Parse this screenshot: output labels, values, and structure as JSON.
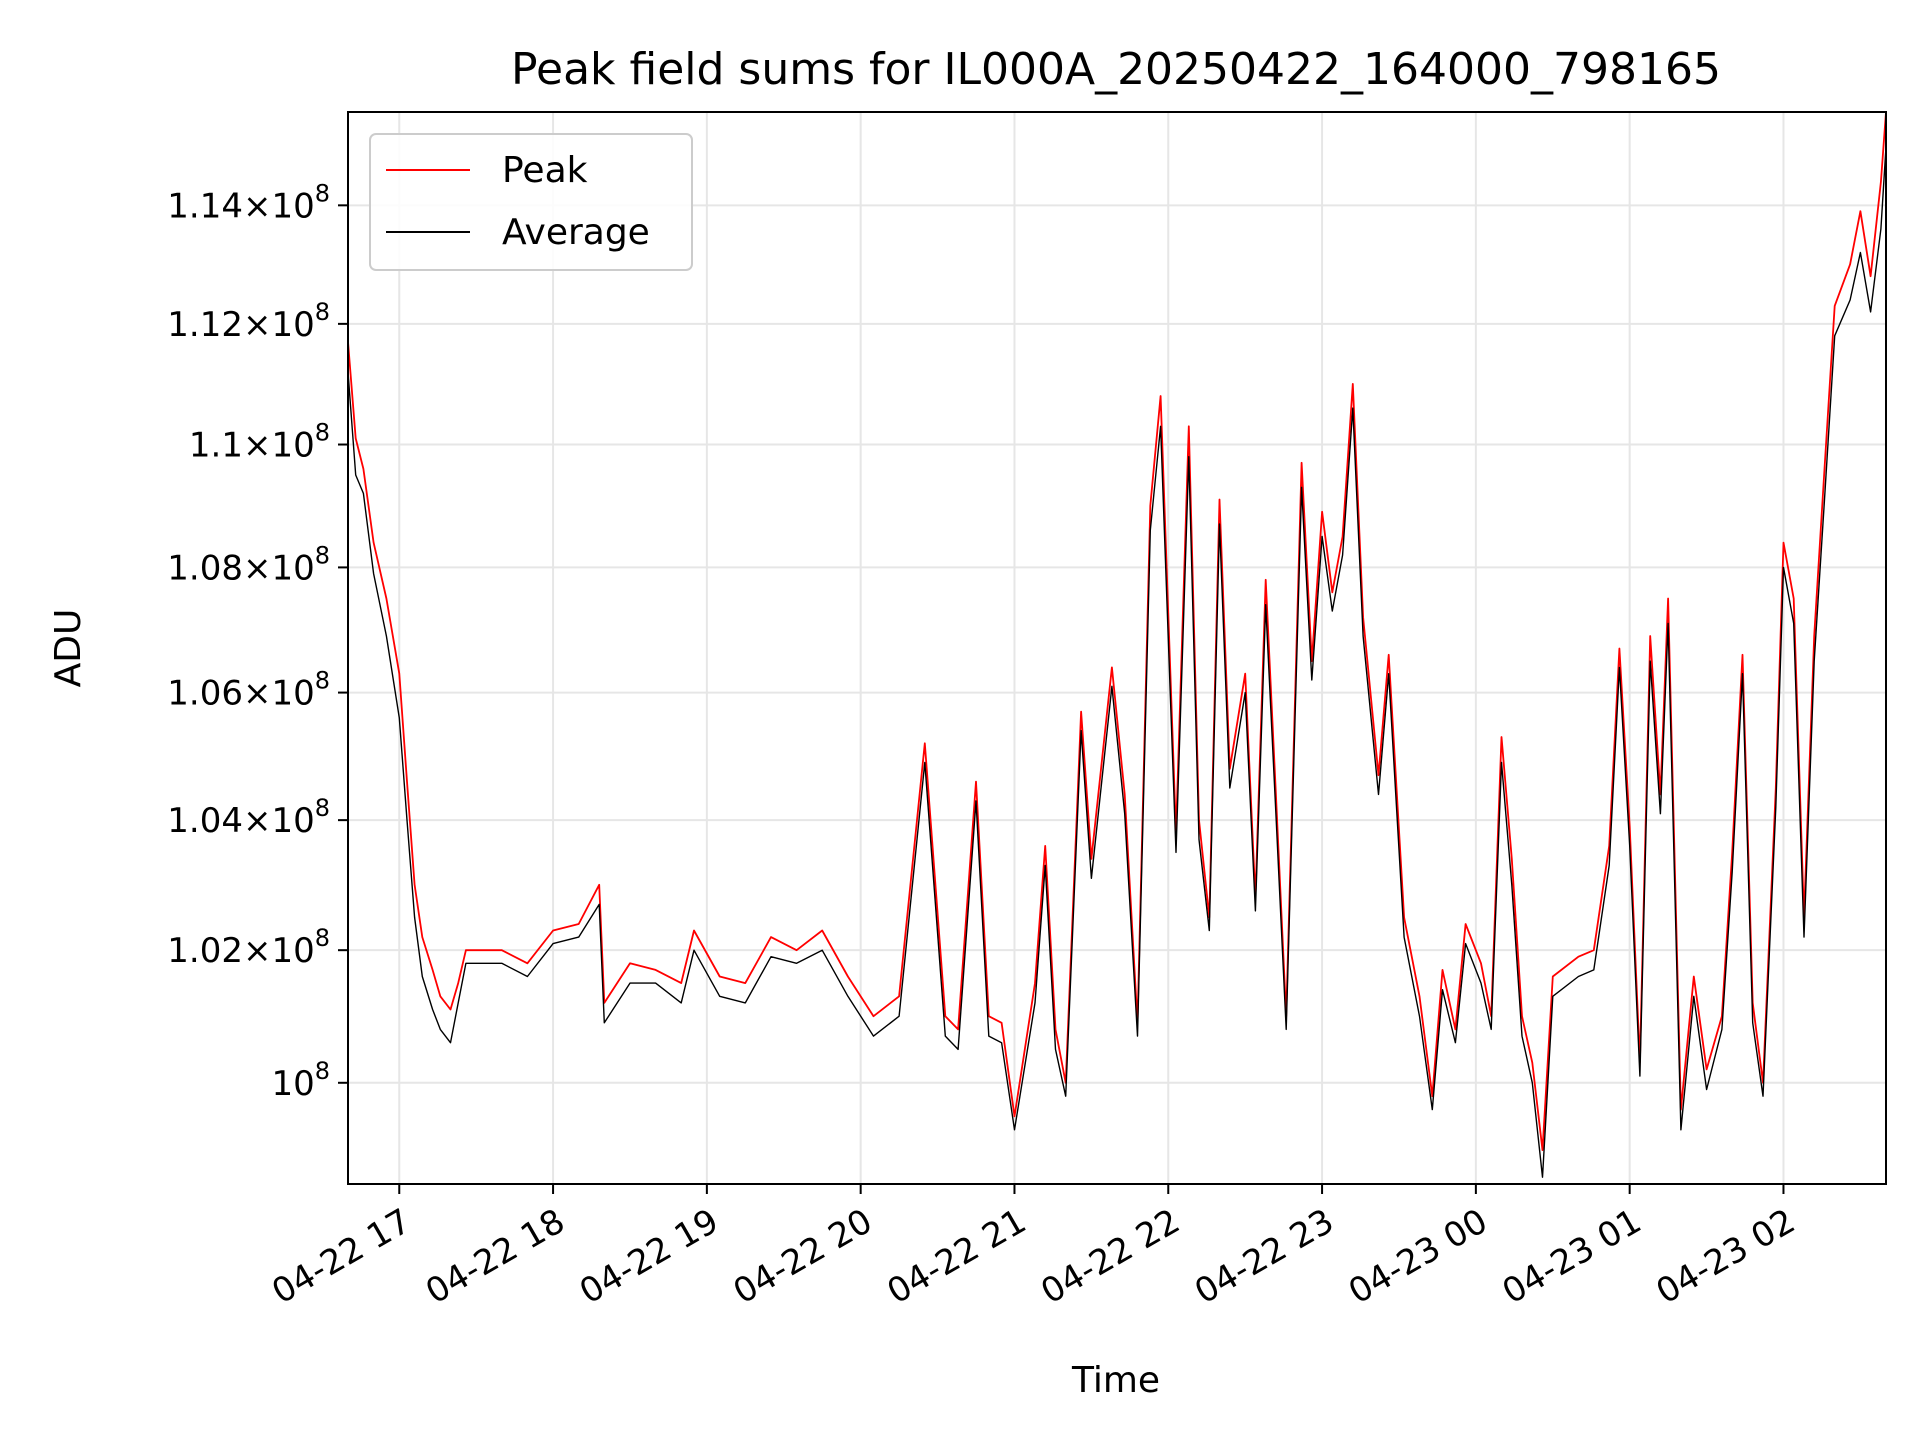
{
  "chart_data": {
    "type": "line",
    "title": "Peak field sums for IL000A_20250422_164000_798165",
    "xlabel": "Time",
    "ylabel": "ADU",
    "yscale": "log",
    "x_tick_labels": [
      "04-22 17",
      "04-22 18",
      "04-22 19",
      "04-22 20",
      "04-22 21",
      "04-22 22",
      "04-22 23",
      "04-23 00",
      "04-23 01",
      "04-23 02"
    ],
    "x_ticks": [
      "2025-04-22 17:00",
      "2025-04-22 18:00",
      "2025-04-22 19:00",
      "2025-04-22 20:00",
      "2025-04-22 21:00",
      "2025-04-22 22:00",
      "2025-04-22 23:00",
      "2025-04-23 00:00",
      "2025-04-23 01:00",
      "2025-04-23 02:00"
    ],
    "xlim": [
      "2025-04-22 16:40",
      "2025-04-23 02:40"
    ],
    "y_ticks": [
      {
        "value": 100000000,
        "mantissa": "",
        "exponent": "8"
      },
      {
        "value": 102000000,
        "mantissa": "1.02",
        "exponent": "8"
      },
      {
        "value": 104000000,
        "mantissa": "1.04",
        "exponent": "8"
      },
      {
        "value": 106000000,
        "mantissa": "1.06",
        "exponent": "8"
      },
      {
        "value": 108000000,
        "mantissa": "1.08",
        "exponent": "8"
      },
      {
        "value": 110000000,
        "mantissa": "1.1",
        "exponent": "8"
      },
      {
        "value": 112000000,
        "mantissa": "1.12",
        "exponent": "8"
      },
      {
        "value": 114000000,
        "mantissa": "1.14",
        "exponent": "8"
      }
    ],
    "ylim": [
      98500000,
      115600000
    ],
    "grid": true,
    "legend_position": "upper-left",
    "series": [
      {
        "name": "Peak",
        "color": "#ff0000",
        "points": [
          [
            "2025-04-22 16:40",
            111.7
          ],
          [
            "2025-04-22 16:43",
            110.1
          ],
          [
            "2025-04-22 16:46",
            109.6
          ],
          [
            "2025-04-22 16:50",
            108.4
          ],
          [
            "2025-04-22 16:55",
            107.5
          ],
          [
            "2025-04-22 17:00",
            106.3
          ],
          [
            "2025-04-22 17:03",
            104.6
          ],
          [
            "2025-04-22 17:06",
            103.0
          ],
          [
            "2025-04-22 17:09",
            102.2
          ],
          [
            "2025-04-22 17:13",
            101.7
          ],
          [
            "2025-04-22 17:16",
            101.3
          ],
          [
            "2025-04-22 17:20",
            101.1
          ],
          [
            "2025-04-22 17:23",
            101.5
          ],
          [
            "2025-04-22 17:26",
            102.0
          ],
          [
            "2025-04-22 17:30",
            102.0
          ],
          [
            "2025-04-22 17:40",
            102.0
          ],
          [
            "2025-04-22 17:50",
            101.8
          ],
          [
            "2025-04-22 18:00",
            102.3
          ],
          [
            "2025-04-22 18:10",
            102.4
          ],
          [
            "2025-04-22 18:18",
            103.0
          ],
          [
            "2025-04-22 18:20",
            101.2
          ],
          [
            "2025-04-22 18:30",
            101.8
          ],
          [
            "2025-04-22 18:40",
            101.7
          ],
          [
            "2025-04-22 18:50",
            101.5
          ],
          [
            "2025-04-22 18:55",
            102.3
          ],
          [
            "2025-04-22 19:05",
            101.6
          ],
          [
            "2025-04-22 19:15",
            101.5
          ],
          [
            "2025-04-22 19:25",
            102.2
          ],
          [
            "2025-04-22 19:35",
            102.0
          ],
          [
            "2025-04-22 19:45",
            102.3
          ],
          [
            "2025-04-22 19:55",
            101.6
          ],
          [
            "2025-04-22 20:05",
            101.0
          ],
          [
            "2025-04-22 20:15",
            101.3
          ],
          [
            "2025-04-22 20:25",
            105.2
          ],
          [
            "2025-04-22 20:33",
            101.0
          ],
          [
            "2025-04-22 20:38",
            100.8
          ],
          [
            "2025-04-22 20:45",
            104.6
          ],
          [
            "2025-04-22 20:50",
            101.0
          ],
          [
            "2025-04-22 20:55",
            100.9
          ],
          [
            "2025-04-22 21:00",
            99.5
          ],
          [
            "2025-04-22 21:08",
            101.5
          ],
          [
            "2025-04-22 21:12",
            103.6
          ],
          [
            "2025-04-22 21:16",
            100.8
          ],
          [
            "2025-04-22 21:20",
            100.0
          ],
          [
            "2025-04-22 21:26",
            105.7
          ],
          [
            "2025-04-22 21:30",
            103.4
          ],
          [
            "2025-04-22 21:38",
            106.4
          ],
          [
            "2025-04-22 21:43",
            104.4
          ],
          [
            "2025-04-22 21:48",
            100.9
          ],
          [
            "2025-04-22 21:53",
            109.0
          ],
          [
            "2025-04-22 21:57",
            110.8
          ],
          [
            "2025-04-22 22:03",
            103.8
          ],
          [
            "2025-04-22 22:08",
            110.3
          ],
          [
            "2025-04-22 22:12",
            104.0
          ],
          [
            "2025-04-22 22:16",
            102.5
          ],
          [
            "2025-04-22 22:20",
            109.1
          ],
          [
            "2025-04-22 22:24",
            104.8
          ],
          [
            "2025-04-22 22:30",
            106.3
          ],
          [
            "2025-04-22 22:34",
            102.8
          ],
          [
            "2025-04-22 22:38",
            107.8
          ],
          [
            "2025-04-22 22:42",
            104.4
          ],
          [
            "2025-04-22 22:46",
            101.0
          ],
          [
            "2025-04-22 22:52",
            109.7
          ],
          [
            "2025-04-22 22:56",
            106.5
          ],
          [
            "2025-04-22 23:00",
            108.9
          ],
          [
            "2025-04-22 23:04",
            107.6
          ],
          [
            "2025-04-22 23:08",
            108.5
          ],
          [
            "2025-04-22 23:12",
            111.0
          ],
          [
            "2025-04-22 23:16",
            107.2
          ],
          [
            "2025-04-22 23:22",
            104.7
          ],
          [
            "2025-04-22 23:26",
            106.6
          ],
          [
            "2025-04-22 23:32",
            102.5
          ],
          [
            "2025-04-22 23:38",
            101.3
          ],
          [
            "2025-04-22 23:43",
            99.8
          ],
          [
            "2025-04-22 23:47",
            101.7
          ],
          [
            "2025-04-22 23:52",
            100.8
          ],
          [
            "2025-04-22 23:56",
            102.4
          ],
          [
            "2025-04-23 00:02",
            101.8
          ],
          [
            "2025-04-23 00:06",
            101.0
          ],
          [
            "2025-04-23 00:10",
            105.3
          ],
          [
            "2025-04-23 00:14",
            103.4
          ],
          [
            "2025-04-23 00:18",
            101.0
          ],
          [
            "2025-04-23 00:22",
            100.3
          ],
          [
            "2025-04-23 00:26",
            99.0
          ],
          [
            "2025-04-23 00:30",
            101.6
          ],
          [
            "2025-04-23 00:40",
            101.9
          ],
          [
            "2025-04-23 00:46",
            102.0
          ],
          [
            "2025-04-23 00:52",
            103.6
          ],
          [
            "2025-04-23 00:56",
            106.7
          ],
          [
            "2025-04-23 01:00",
            103.9
          ],
          [
            "2025-04-23 01:04",
            100.3
          ],
          [
            "2025-04-23 01:08",
            106.9
          ],
          [
            "2025-04-23 01:12",
            104.4
          ],
          [
            "2025-04-23 01:15",
            107.5
          ],
          [
            "2025-04-23 01:20",
            99.6
          ],
          [
            "2025-04-23 01:25",
            101.6
          ],
          [
            "2025-04-23 01:30",
            100.2
          ],
          [
            "2025-04-23 01:36",
            101.0
          ],
          [
            "2025-04-23 01:40",
            103.5
          ],
          [
            "2025-04-23 01:44",
            106.6
          ],
          [
            "2025-04-23 01:48",
            101.2
          ],
          [
            "2025-04-23 01:52",
            100.0
          ],
          [
            "2025-04-23 01:57",
            104.5
          ],
          [
            "2025-04-23 02:00",
            108.4
          ],
          [
            "2025-04-23 02:04",
            107.5
          ],
          [
            "2025-04-23 02:08",
            102.5
          ],
          [
            "2025-04-23 02:12",
            106.9
          ],
          [
            "2025-04-23 02:16",
            109.6
          ],
          [
            "2025-04-23 02:20",
            112.3
          ],
          [
            "2025-04-23 02:26",
            113.0
          ],
          [
            "2025-04-23 02:30",
            113.9
          ],
          [
            "2025-04-23 02:34",
            112.8
          ],
          [
            "2025-04-23 02:38",
            114.4
          ],
          [
            "2025-04-23 02:40",
            115.6
          ]
        ]
      },
      {
        "name": "Average",
        "color": "#000000",
        "points": [
          [
            "2025-04-22 16:40",
            111.2
          ],
          [
            "2025-04-22 16:43",
            109.5
          ],
          [
            "2025-04-22 16:46",
            109.2
          ],
          [
            "2025-04-22 16:50",
            107.9
          ],
          [
            "2025-04-22 16:55",
            106.9
          ],
          [
            "2025-04-22 17:00",
            105.6
          ],
          [
            "2025-04-22 17:03",
            104.0
          ],
          [
            "2025-04-22 17:06",
            102.5
          ],
          [
            "2025-04-22 17:09",
            101.6
          ],
          [
            "2025-04-22 17:13",
            101.1
          ],
          [
            "2025-04-22 17:16",
            100.8
          ],
          [
            "2025-04-22 17:20",
            100.6
          ],
          [
            "2025-04-22 17:23",
            101.2
          ],
          [
            "2025-04-22 17:26",
            101.8
          ],
          [
            "2025-04-22 17:30",
            101.8
          ],
          [
            "2025-04-22 17:40",
            101.8
          ],
          [
            "2025-04-22 17:50",
            101.6
          ],
          [
            "2025-04-22 18:00",
            102.1
          ],
          [
            "2025-04-22 18:10",
            102.2
          ],
          [
            "2025-04-22 18:18",
            102.7
          ],
          [
            "2025-04-22 18:20",
            100.9
          ],
          [
            "2025-04-22 18:30",
            101.5
          ],
          [
            "2025-04-22 18:40",
            101.5
          ],
          [
            "2025-04-22 18:50",
            101.2
          ],
          [
            "2025-04-22 18:55",
            102.0
          ],
          [
            "2025-04-22 19:05",
            101.3
          ],
          [
            "2025-04-22 19:15",
            101.2
          ],
          [
            "2025-04-22 19:25",
            101.9
          ],
          [
            "2025-04-22 19:35",
            101.8
          ],
          [
            "2025-04-22 19:45",
            102.0
          ],
          [
            "2025-04-22 19:55",
            101.3
          ],
          [
            "2025-04-22 20:05",
            100.7
          ],
          [
            "2025-04-22 20:15",
            101.0
          ],
          [
            "2025-04-22 20:25",
            104.9
          ],
          [
            "2025-04-22 20:33",
            100.7
          ],
          [
            "2025-04-22 20:38",
            100.5
          ],
          [
            "2025-04-22 20:45",
            104.3
          ],
          [
            "2025-04-22 20:50",
            100.7
          ],
          [
            "2025-04-22 20:55",
            100.6
          ],
          [
            "2025-04-22 21:00",
            99.3
          ],
          [
            "2025-04-22 21:08",
            101.2
          ],
          [
            "2025-04-22 21:12",
            103.3
          ],
          [
            "2025-04-22 21:16",
            100.5
          ],
          [
            "2025-04-22 21:20",
            99.8
          ],
          [
            "2025-04-22 21:26",
            105.4
          ],
          [
            "2025-04-22 21:30",
            103.1
          ],
          [
            "2025-04-22 21:38",
            106.1
          ],
          [
            "2025-04-22 21:43",
            104.1
          ],
          [
            "2025-04-22 21:48",
            100.7
          ],
          [
            "2025-04-22 21:53",
            108.6
          ],
          [
            "2025-04-22 21:57",
            110.3
          ],
          [
            "2025-04-22 22:03",
            103.5
          ],
          [
            "2025-04-22 22:08",
            109.8
          ],
          [
            "2025-04-22 22:12",
            103.7
          ],
          [
            "2025-04-22 22:16",
            102.3
          ],
          [
            "2025-04-22 22:20",
            108.7
          ],
          [
            "2025-04-22 22:24",
            104.5
          ],
          [
            "2025-04-22 22:30",
            106.0
          ],
          [
            "2025-04-22 22:34",
            102.6
          ],
          [
            "2025-04-22 22:38",
            107.4
          ],
          [
            "2025-04-22 22:42",
            104.1
          ],
          [
            "2025-04-22 22:46",
            100.8
          ],
          [
            "2025-04-22 22:52",
            109.3
          ],
          [
            "2025-04-22 22:56",
            106.2
          ],
          [
            "2025-04-22 23:00",
            108.5
          ],
          [
            "2025-04-22 23:04",
            107.3
          ],
          [
            "2025-04-22 23:08",
            108.2
          ],
          [
            "2025-04-22 23:12",
            110.6
          ],
          [
            "2025-04-22 23:16",
            106.9
          ],
          [
            "2025-04-22 23:22",
            104.4
          ],
          [
            "2025-04-22 23:26",
            106.3
          ],
          [
            "2025-04-22 23:32",
            102.2
          ],
          [
            "2025-04-22 23:38",
            101.0
          ],
          [
            "2025-04-22 23:43",
            99.6
          ],
          [
            "2025-04-22 23:47",
            101.4
          ],
          [
            "2025-04-22 23:52",
            100.6
          ],
          [
            "2025-04-22 23:56",
            102.1
          ],
          [
            "2025-04-23 00:02",
            101.5
          ],
          [
            "2025-04-23 00:06",
            100.8
          ],
          [
            "2025-04-23 00:10",
            104.9
          ],
          [
            "2025-04-23 00:14",
            103.0
          ],
          [
            "2025-04-23 00:18",
            100.7
          ],
          [
            "2025-04-23 00:22",
            100.0
          ],
          [
            "2025-04-23 00:26",
            98.6
          ],
          [
            "2025-04-23 00:30",
            101.3
          ],
          [
            "2025-04-23 00:40",
            101.6
          ],
          [
            "2025-04-23 00:46",
            101.7
          ],
          [
            "2025-04-23 00:52",
            103.3
          ],
          [
            "2025-04-23 00:56",
            106.4
          ],
          [
            "2025-04-23 01:00",
            103.6
          ],
          [
            "2025-04-23 01:04",
            100.1
          ],
          [
            "2025-04-23 01:08",
            106.5
          ],
          [
            "2025-04-23 01:12",
            104.1
          ],
          [
            "2025-04-23 01:15",
            107.1
          ],
          [
            "2025-04-23 01:20",
            99.3
          ],
          [
            "2025-04-23 01:25",
            101.3
          ],
          [
            "2025-04-23 01:30",
            99.9
          ],
          [
            "2025-04-23 01:36",
            100.8
          ],
          [
            "2025-04-23 01:40",
            103.2
          ],
          [
            "2025-04-23 01:44",
            106.3
          ],
          [
            "2025-04-23 01:48",
            100.9
          ],
          [
            "2025-04-23 01:52",
            99.8
          ],
          [
            "2025-04-23 01:57",
            104.2
          ],
          [
            "2025-04-23 02:00",
            108.0
          ],
          [
            "2025-04-23 02:04",
            107.1
          ],
          [
            "2025-04-23 02:08",
            102.2
          ],
          [
            "2025-04-23 02:12",
            106.5
          ],
          [
            "2025-04-23 02:16",
            109.1
          ],
          [
            "2025-04-23 02:20",
            111.8
          ],
          [
            "2025-04-23 02:26",
            112.4
          ],
          [
            "2025-04-23 02:30",
            113.2
          ],
          [
            "2025-04-23 02:34",
            112.2
          ],
          [
            "2025-04-23 02:38",
            113.6
          ],
          [
            "2025-04-23 02:40",
            115.0
          ]
        ]
      }
    ],
    "value_unit_note": ""
  }
}
